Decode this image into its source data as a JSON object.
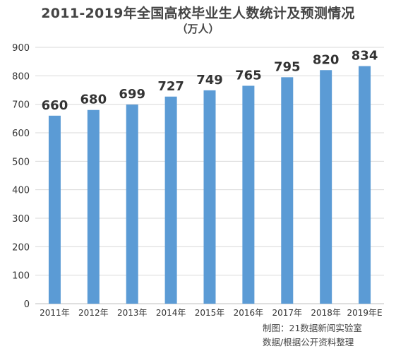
{
  "chart_data": {
    "type": "bar",
    "title": "2011-2019年全国高校毕业生人数统计及预测情况",
    "subtitle": "（万人）",
    "categories": [
      "2011年",
      "2012年",
      "2013年",
      "2014年",
      "2015年",
      "2016年",
      "2017年",
      "2018年",
      "2019年E"
    ],
    "values": [
      660,
      680,
      699,
      727,
      749,
      765,
      795,
      820,
      834
    ],
    "ylim": [
      0,
      900
    ],
    "yticks": [
      0,
      100,
      200,
      300,
      400,
      500,
      600,
      700,
      800,
      900
    ],
    "grid": true,
    "xlabel": "",
    "ylabel": "",
    "bar_color": "#5b9bd5"
  },
  "credits": {
    "line1": "制图：21数据新闻实验室",
    "line2": "数据/根据公开资料整理"
  }
}
